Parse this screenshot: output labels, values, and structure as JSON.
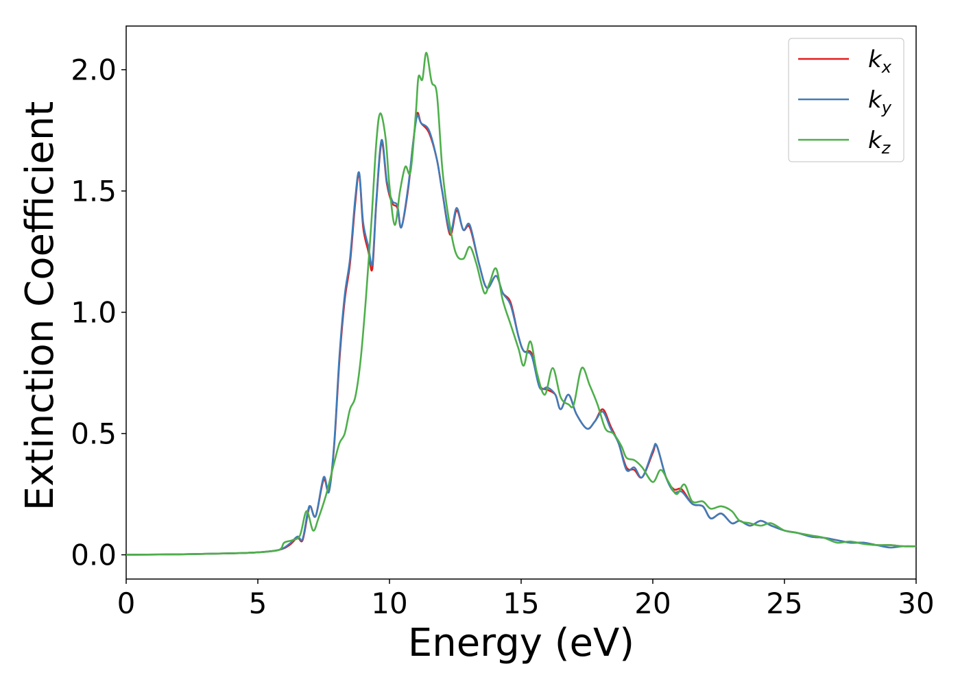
{
  "chart_data": {
    "type": "line",
    "title": "",
    "xlabel": "Energy (eV)",
    "ylabel": "Extinction Coefficient",
    "xlim": [
      0,
      30
    ],
    "ylim": [
      -0.1,
      2.18
    ],
    "x_ticks": [
      0,
      5,
      10,
      15,
      20,
      25,
      30
    ],
    "x_tick_labels": [
      "0",
      "5",
      "10",
      "15",
      "20",
      "25",
      "30"
    ],
    "y_ticks": [
      0.0,
      0.5,
      1.0,
      1.5,
      2.0
    ],
    "y_tick_labels": [
      "0.0",
      "0.5",
      "1.0",
      "1.5",
      "2.0"
    ],
    "grid": false,
    "legend_position": "top-right",
    "series": [
      {
        "name": "k_x",
        "label_main": "k",
        "label_sub": "x",
        "color": "#e41a1c",
        "points": [
          [
            0,
            0.0
          ],
          [
            2,
            0.002
          ],
          [
            4,
            0.006
          ],
          [
            5,
            0.01
          ],
          [
            5.8,
            0.02
          ],
          [
            6.2,
            0.04
          ],
          [
            6.5,
            0.07
          ],
          [
            6.7,
            0.06
          ],
          [
            6.9,
            0.17
          ],
          [
            7.0,
            0.2
          ],
          [
            7.2,
            0.16
          ],
          [
            7.5,
            0.31
          ],
          [
            7.7,
            0.26
          ],
          [
            7.9,
            0.45
          ],
          [
            8.1,
            0.8
          ],
          [
            8.3,
            1.05
          ],
          [
            8.5,
            1.2
          ],
          [
            8.7,
            1.45
          ],
          [
            8.85,
            1.57
          ],
          [
            9.0,
            1.35
          ],
          [
            9.2,
            1.25
          ],
          [
            9.35,
            1.18
          ],
          [
            9.5,
            1.45
          ],
          [
            9.7,
            1.7
          ],
          [
            9.9,
            1.53
          ],
          [
            10.1,
            1.45
          ],
          [
            10.3,
            1.43
          ],
          [
            10.45,
            1.35
          ],
          [
            10.7,
            1.5
          ],
          [
            10.9,
            1.7
          ],
          [
            11.05,
            1.82
          ],
          [
            11.2,
            1.78
          ],
          [
            11.5,
            1.74
          ],
          [
            11.8,
            1.63
          ],
          [
            12.0,
            1.5
          ],
          [
            12.3,
            1.32
          ],
          [
            12.55,
            1.42
          ],
          [
            12.8,
            1.34
          ],
          [
            13.05,
            1.35
          ],
          [
            13.4,
            1.2
          ],
          [
            13.7,
            1.1
          ],
          [
            14.05,
            1.15
          ],
          [
            14.3,
            1.08
          ],
          [
            14.6,
            1.04
          ],
          [
            14.9,
            0.9
          ],
          [
            15.1,
            0.84
          ],
          [
            15.4,
            0.83
          ],
          [
            15.7,
            0.7
          ],
          [
            16.0,
            0.68
          ],
          [
            16.3,
            0.66
          ],
          [
            16.5,
            0.6
          ],
          [
            16.8,
            0.66
          ],
          [
            17.1,
            0.58
          ],
          [
            17.5,
            0.52
          ],
          [
            17.8,
            0.55
          ],
          [
            18.1,
            0.6
          ],
          [
            18.4,
            0.53
          ],
          [
            18.7,
            0.46
          ],
          [
            19.0,
            0.36
          ],
          [
            19.3,
            0.35
          ],
          [
            19.6,
            0.32
          ],
          [
            20.0,
            0.42
          ],
          [
            20.15,
            0.45
          ],
          [
            20.5,
            0.32
          ],
          [
            20.8,
            0.27
          ],
          [
            21.1,
            0.27
          ],
          [
            21.5,
            0.21
          ],
          [
            21.9,
            0.2
          ],
          [
            22.2,
            0.15
          ],
          [
            22.6,
            0.17
          ],
          [
            23.0,
            0.13
          ],
          [
            23.3,
            0.14
          ],
          [
            23.7,
            0.12
          ],
          [
            24.1,
            0.14
          ],
          [
            24.5,
            0.12
          ],
          [
            25.0,
            0.1
          ],
          [
            25.5,
            0.09
          ],
          [
            26.0,
            0.075
          ],
          [
            26.5,
            0.07
          ],
          [
            27.0,
            0.06
          ],
          [
            27.5,
            0.05
          ],
          [
            28.0,
            0.05
          ],
          [
            28.5,
            0.04
          ],
          [
            29.0,
            0.04
          ],
          [
            29.5,
            0.035
          ],
          [
            30.0,
            0.035
          ]
        ]
      },
      {
        "name": "k_y",
        "label_main": "k",
        "label_sub": "y",
        "color": "#3f7cb9",
        "points": [
          [
            0,
            0.0
          ],
          [
            2,
            0.002
          ],
          [
            4,
            0.006
          ],
          [
            5,
            0.01
          ],
          [
            5.8,
            0.02
          ],
          [
            6.2,
            0.045
          ],
          [
            6.5,
            0.075
          ],
          [
            6.7,
            0.065
          ],
          [
            6.9,
            0.18
          ],
          [
            7.0,
            0.2
          ],
          [
            7.2,
            0.16
          ],
          [
            7.5,
            0.32
          ],
          [
            7.7,
            0.26
          ],
          [
            7.9,
            0.46
          ],
          [
            8.1,
            0.82
          ],
          [
            8.3,
            1.07
          ],
          [
            8.5,
            1.22
          ],
          [
            8.7,
            1.47
          ],
          [
            8.85,
            1.575
          ],
          [
            9.0,
            1.37
          ],
          [
            9.2,
            1.27
          ],
          [
            9.35,
            1.2
          ],
          [
            9.5,
            1.46
          ],
          [
            9.7,
            1.71
          ],
          [
            9.9,
            1.54
          ],
          [
            10.1,
            1.46
          ],
          [
            10.3,
            1.44
          ],
          [
            10.45,
            1.35
          ],
          [
            10.7,
            1.51
          ],
          [
            10.9,
            1.7
          ],
          [
            11.05,
            1.81
          ],
          [
            11.2,
            1.78
          ],
          [
            11.5,
            1.75
          ],
          [
            11.8,
            1.63
          ],
          [
            12.0,
            1.5
          ],
          [
            12.3,
            1.33
          ],
          [
            12.55,
            1.43
          ],
          [
            12.8,
            1.34
          ],
          [
            13.05,
            1.36
          ],
          [
            13.4,
            1.2
          ],
          [
            13.7,
            1.1
          ],
          [
            14.05,
            1.15
          ],
          [
            14.3,
            1.08
          ],
          [
            14.6,
            1.03
          ],
          [
            14.9,
            0.9
          ],
          [
            15.1,
            0.84
          ],
          [
            15.4,
            0.82
          ],
          [
            15.7,
            0.69
          ],
          [
            16.0,
            0.69
          ],
          [
            16.3,
            0.66
          ],
          [
            16.5,
            0.6
          ],
          [
            16.8,
            0.66
          ],
          [
            17.1,
            0.58
          ],
          [
            17.5,
            0.52
          ],
          [
            17.8,
            0.55
          ],
          [
            18.1,
            0.59
          ],
          [
            18.4,
            0.52
          ],
          [
            18.7,
            0.46
          ],
          [
            19.0,
            0.35
          ],
          [
            19.3,
            0.36
          ],
          [
            19.6,
            0.32
          ],
          [
            20.0,
            0.43
          ],
          [
            20.15,
            0.45
          ],
          [
            20.5,
            0.32
          ],
          [
            20.8,
            0.26
          ],
          [
            21.1,
            0.26
          ],
          [
            21.5,
            0.21
          ],
          [
            21.9,
            0.2
          ],
          [
            22.2,
            0.15
          ],
          [
            22.6,
            0.17
          ],
          [
            23.0,
            0.13
          ],
          [
            23.3,
            0.14
          ],
          [
            23.7,
            0.12
          ],
          [
            24.1,
            0.14
          ],
          [
            24.5,
            0.12
          ],
          [
            25.0,
            0.1
          ],
          [
            25.5,
            0.09
          ],
          [
            26.0,
            0.075
          ],
          [
            26.5,
            0.07
          ],
          [
            27.0,
            0.06
          ],
          [
            27.5,
            0.05
          ],
          [
            28.0,
            0.05
          ],
          [
            28.5,
            0.04
          ],
          [
            29.0,
            0.03
          ],
          [
            29.5,
            0.035
          ],
          [
            30.0,
            0.035
          ]
        ]
      },
      {
        "name": "k_z",
        "label_main": "k",
        "label_sub": "z",
        "color": "#4daf4a",
        "points": [
          [
            0,
            0.0
          ],
          [
            2,
            0.002
          ],
          [
            4,
            0.006
          ],
          [
            5,
            0.01
          ],
          [
            5.8,
            0.02
          ],
          [
            6.0,
            0.05
          ],
          [
            6.3,
            0.06
          ],
          [
            6.6,
            0.08
          ],
          [
            6.85,
            0.18
          ],
          [
            7.1,
            0.1
          ],
          [
            7.3,
            0.15
          ],
          [
            7.6,
            0.25
          ],
          [
            7.9,
            0.38
          ],
          [
            8.1,
            0.46
          ],
          [
            8.3,
            0.5
          ],
          [
            8.5,
            0.6
          ],
          [
            8.7,
            0.65
          ],
          [
            8.9,
            0.8
          ],
          [
            9.1,
            1.05
          ],
          [
            9.3,
            1.35
          ],
          [
            9.5,
            1.7
          ],
          [
            9.65,
            1.82
          ],
          [
            9.85,
            1.72
          ],
          [
            10.0,
            1.52
          ],
          [
            10.2,
            1.36
          ],
          [
            10.4,
            1.5
          ],
          [
            10.6,
            1.6
          ],
          [
            10.8,
            1.58
          ],
          [
            11.0,
            1.82
          ],
          [
            11.1,
            1.97
          ],
          [
            11.25,
            1.96
          ],
          [
            11.4,
            2.07
          ],
          [
            11.6,
            1.95
          ],
          [
            11.8,
            1.9
          ],
          [
            12.0,
            1.6
          ],
          [
            12.2,
            1.42
          ],
          [
            12.5,
            1.25
          ],
          [
            12.8,
            1.22
          ],
          [
            13.05,
            1.27
          ],
          [
            13.3,
            1.2
          ],
          [
            13.6,
            1.08
          ],
          [
            13.8,
            1.12
          ],
          [
            14.05,
            1.18
          ],
          [
            14.3,
            1.05
          ],
          [
            14.6,
            0.95
          ],
          [
            14.9,
            0.85
          ],
          [
            15.1,
            0.78
          ],
          [
            15.35,
            0.88
          ],
          [
            15.6,
            0.75
          ],
          [
            15.9,
            0.66
          ],
          [
            16.2,
            0.77
          ],
          [
            16.5,
            0.65
          ],
          [
            16.8,
            0.62
          ],
          [
            17.0,
            0.62
          ],
          [
            17.3,
            0.77
          ],
          [
            17.6,
            0.7
          ],
          [
            17.9,
            0.62
          ],
          [
            18.2,
            0.52
          ],
          [
            18.5,
            0.5
          ],
          [
            18.8,
            0.45
          ],
          [
            19.0,
            0.4
          ],
          [
            19.3,
            0.39
          ],
          [
            19.6,
            0.36
          ],
          [
            20.0,
            0.3
          ],
          [
            20.3,
            0.35
          ],
          [
            20.6,
            0.3
          ],
          [
            20.9,
            0.25
          ],
          [
            21.2,
            0.29
          ],
          [
            21.5,
            0.22
          ],
          [
            21.9,
            0.22
          ],
          [
            22.2,
            0.19
          ],
          [
            22.6,
            0.2
          ],
          [
            23.0,
            0.18
          ],
          [
            23.3,
            0.14
          ],
          [
            23.7,
            0.13
          ],
          [
            24.1,
            0.12
          ],
          [
            24.5,
            0.13
          ],
          [
            25.0,
            0.1
          ],
          [
            25.5,
            0.09
          ],
          [
            26.0,
            0.08
          ],
          [
            26.5,
            0.07
          ],
          [
            27.0,
            0.05
          ],
          [
            27.5,
            0.055
          ],
          [
            28.0,
            0.045
          ],
          [
            28.5,
            0.04
          ],
          [
            29.0,
            0.04
          ],
          [
            29.5,
            0.035
          ],
          [
            30.0,
            0.035
          ]
        ]
      }
    ]
  }
}
